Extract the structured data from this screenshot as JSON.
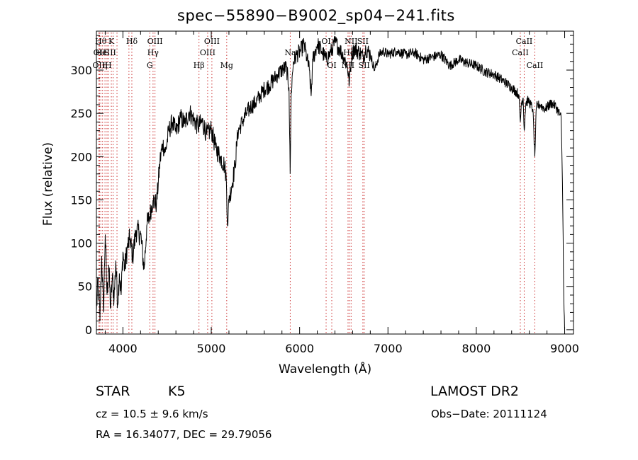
{
  "chart_data": {
    "type": "line",
    "title": "spec−55890−B9002_sp04−241.fits",
    "xlabel": "Wavelength (Å)",
    "ylabel": "Flux (relative)",
    "xlim": [
      3700,
      9100
    ],
    "ylim": [
      -5,
      345
    ],
    "x_ticks": [
      4000,
      5000,
      6000,
      7000,
      8000,
      9000
    ],
    "y_ticks": [
      0,
      50,
      100,
      150,
      200,
      250,
      300
    ],
    "grid": false,
    "line_color": "#000000",
    "marker_line_color": "#cc3333",
    "spectrum": [
      [
        3700,
        20
      ],
      [
        3720,
        60
      ],
      [
        3740,
        10
      ],
      [
        3760,
        85
      ],
      [
        3780,
        20
      ],
      [
        3800,
        110
      ],
      [
        3820,
        40
      ],
      [
        3840,
        75
      ],
      [
        3860,
        25
      ],
      [
        3880,
        60
      ],
      [
        3900,
        35
      ],
      [
        3920,
        80
      ],
      [
        3940,
        30
      ],
      [
        3960,
        65
      ],
      [
        3980,
        40
      ],
      [
        4000,
        90
      ],
      [
        4020,
        70
      ],
      [
        4050,
        95
      ],
      [
        4080,
        105
      ],
      [
        4110,
        85
      ],
      [
        4150,
        115
      ],
      [
        4200,
        110
      ],
      [
        4240,
        70
      ],
      [
        4270,
        120
      ],
      [
        4300,
        130
      ],
      [
        4340,
        150
      ],
      [
        4380,
        145
      ],
      [
        4420,
        195
      ],
      [
        4450,
        215
      ],
      [
        4480,
        205
      ],
      [
        4520,
        230
      ],
      [
        4560,
        240
      ],
      [
        4600,
        228
      ],
      [
        4650,
        245
      ],
      [
        4700,
        238
      ],
      [
        4750,
        252
      ],
      [
        4800,
        243
      ],
      [
        4850,
        235
      ],
      [
        4900,
        240
      ],
      [
        4950,
        225
      ],
      [
        5000,
        232
      ],
      [
        5050,
        210
      ],
      [
        5100,
        200
      ],
      [
        5150,
        190
      ],
      [
        5170,
        175
      ],
      [
        5185,
        120
      ],
      [
        5200,
        150
      ],
      [
        5230,
        165
      ],
      [
        5270,
        190
      ],
      [
        5300,
        228
      ],
      [
        5350,
        240
      ],
      [
        5400,
        250
      ],
      [
        5450,
        258
      ],
      [
        5500,
        262
      ],
      [
        5550,
        270
      ],
      [
        5600,
        278
      ],
      [
        5650,
        282
      ],
      [
        5700,
        288
      ],
      [
        5750,
        295
      ],
      [
        5800,
        300
      ],
      [
        5850,
        303
      ],
      [
        5880,
        280
      ],
      [
        5893,
        180
      ],
      [
        5905,
        275
      ],
      [
        5930,
        310
      ],
      [
        5970,
        318
      ],
      [
        6010,
        322
      ],
      [
        6050,
        330
      ],
      [
        6080,
        315
      ],
      [
        6110,
        300
      ],
      [
        6130,
        270
      ],
      [
        6150,
        312
      ],
      [
        6200,
        330
      ],
      [
        6250,
        322
      ],
      [
        6300,
        312
      ],
      [
        6350,
        320
      ],
      [
        6400,
        332
      ],
      [
        6450,
        325
      ],
      [
        6500,
        315
      ],
      [
        6540,
        305
      ],
      [
        6563,
        285
      ],
      [
        6590,
        318
      ],
      [
        6620,
        325
      ],
      [
        6680,
        320
      ],
      [
        6720,
        315
      ],
      [
        6750,
        325
      ],
      [
        6800,
        318
      ],
      [
        6850,
        300
      ],
      [
        6900,
        318
      ],
      [
        6950,
        322
      ],
      [
        7000,
        318
      ],
      [
        7100,
        322
      ],
      [
        7200,
        318
      ],
      [
        7300,
        320
      ],
      [
        7400,
        312
      ],
      [
        7500,
        315
      ],
      [
        7600,
        318
      ],
      [
        7700,
        305
      ],
      [
        7800,
        312
      ],
      [
        7900,
        308
      ],
      [
        8000,
        305
      ],
      [
        8100,
        298
      ],
      [
        8200,
        295
      ],
      [
        8300,
        288
      ],
      [
        8400,
        280
      ],
      [
        8480,
        272
      ],
      [
        8498,
        240
      ],
      [
        8510,
        262
      ],
      [
        8530,
        268
      ],
      [
        8542,
        230
      ],
      [
        8560,
        262
      ],
      [
        8590,
        265
      ],
      [
        8640,
        255
      ],
      [
        8662,
        200
      ],
      [
        8680,
        258
      ],
      [
        8720,
        260
      ],
      [
        8780,
        255
      ],
      [
        8850,
        262
      ],
      [
        8900,
        258
      ],
      [
        8940,
        250
      ],
      [
        8960,
        245
      ],
      [
        8975,
        170
      ],
      [
        8990,
        40
      ],
      [
        9000,
        0
      ]
    ],
    "noise_amplitude_by_region": [
      {
        "from": 3700,
        "to": 4300,
        "amp": 14
      },
      {
        "from": 4300,
        "to": 5300,
        "amp": 12
      },
      {
        "from": 5300,
        "to": 6800,
        "amp": 10
      },
      {
        "from": 6800,
        "to": 9000,
        "amp": 6
      }
    ],
    "line_markers": [
      {
        "wl": 3726,
        "label": "OII",
        "row": 2
      },
      {
        "wl": 3736,
        "label": "OII",
        "row": 1
      },
      {
        "wl": 3750,
        "label": "Hθ",
        "row": 0
      },
      {
        "wl": 3770,
        "label": "HeI",
        "row": 1
      },
      {
        "wl": 3797,
        "label": "η",
        "row": 2
      },
      {
        "wl": 3820,
        "label": "S",
        "row": 1
      },
      {
        "wl": 3835,
        "label": "H",
        "row": 2
      },
      {
        "wl": 3869,
        "label": "K",
        "row": 0
      },
      {
        "wl": 3889,
        "label": "II",
        "row": 1
      },
      {
        "wl": 3933,
        "label": "",
        "row": 0
      },
      {
        "wl": 4068,
        "label": "",
        "row": 0
      },
      {
        "wl": 4101,
        "label": "Hδ",
        "row": 0
      },
      {
        "wl": 4304,
        "label": "G",
        "row": 2
      },
      {
        "wl": 4341,
        "label": "Hγ",
        "row": 1
      },
      {
        "wl": 4363,
        "label": "OIII",
        "row": 0
      },
      {
        "wl": 4861,
        "label": "Hβ",
        "row": 2
      },
      {
        "wl": 4959,
        "label": "OIII",
        "row": 1
      },
      {
        "wl": 5007,
        "label": "OIII",
        "row": 0
      },
      {
        "wl": 5175,
        "label": "Mg",
        "row": 2
      },
      {
        "wl": 5894,
        "label": "Na",
        "row": 1
      },
      {
        "wl": 6300,
        "label": "OI",
        "row": 0
      },
      {
        "wl": 6364,
        "label": "OI",
        "row": 2
      },
      {
        "wl": 6548,
        "label": "NII",
        "row": 2
      },
      {
        "wl": 6563,
        "label": "Hα",
        "row": 1
      },
      {
        "wl": 6583,
        "label": "NII",
        "row": 0
      },
      {
        "wl": 6716,
        "label": "SII",
        "row": 0
      },
      {
        "wl": 6731,
        "label": "SII",
        "row": 2
      },
      {
        "wl": 8498,
        "label": "CaII",
        "row": 1
      },
      {
        "wl": 8542,
        "label": "CaII",
        "row": 0
      },
      {
        "wl": 8662,
        "label": "CaII",
        "row": 2
      }
    ]
  },
  "info": {
    "object_class": "STAR",
    "subclass": "K5",
    "survey": "LAMOST DR2",
    "cz": "cz = 10.5 ± 9.6 km/s",
    "obs_date": "Obs−Date: 20111124",
    "coords": "RA =  16.34077, DEC =  29.79056"
  }
}
